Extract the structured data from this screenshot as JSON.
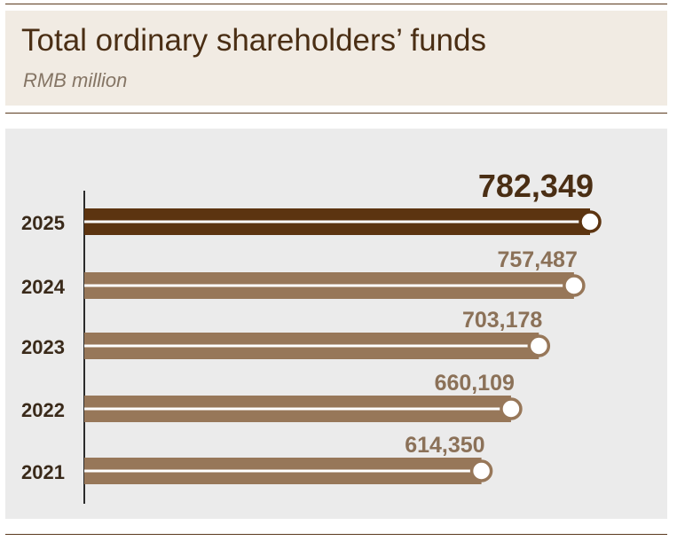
{
  "header": {
    "title": "Total ordinary shareholders’ funds",
    "subtitle": "RMB million"
  },
  "colors": {
    "highlight": "#5c3410",
    "bar": "#977759",
    "highlight_label": "#4a2e14",
    "label": "#8b7158",
    "year_label": "#3a2a1a",
    "axis": "#2b2b2b",
    "panel": "#ebebeb",
    "header_panel": "#f1ebe3"
  },
  "chart_data": {
    "type": "bar",
    "orientation": "horizontal",
    "title": "Total ordinary shareholders’ funds",
    "subtitle": "RMB million",
    "categories": [
      "2025",
      "2024",
      "2023",
      "2022",
      "2021"
    ],
    "values": [
      782349,
      757487,
      703178,
      660109,
      614350
    ],
    "value_labels": [
      "782,349",
      "757,487",
      "703,178",
      "660,109",
      "614,350"
    ],
    "highlight_index": 0,
    "xlabel": "",
    "ylabel": "",
    "xlim": [
      0,
      782349
    ],
    "grid": false,
    "legend": "none"
  }
}
